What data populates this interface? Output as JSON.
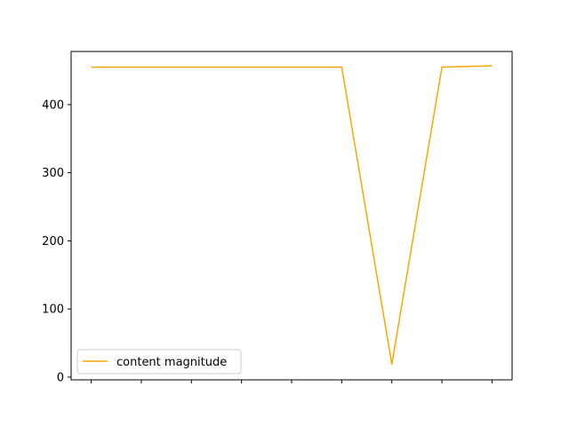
{
  "chart_data": {
    "type": "line",
    "x": [
      0,
      1,
      2,
      3,
      4,
      5,
      6,
      7,
      8
    ],
    "series": [
      {
        "name": "content magnitude",
        "color": "#ffa500",
        "values": [
          455,
          455,
          455,
          455,
          455,
          455,
          19,
          455,
          457
        ]
      }
    ],
    "xticks_labeled": false,
    "yticks": [
      0,
      100,
      200,
      300,
      400
    ],
    "ylim": [
      -4,
      478
    ],
    "xlim": [
      -0.4,
      8.4
    ],
    "title": "",
    "xlabel": "",
    "ylabel": "",
    "grid": false,
    "legend_position": "lower-left"
  }
}
